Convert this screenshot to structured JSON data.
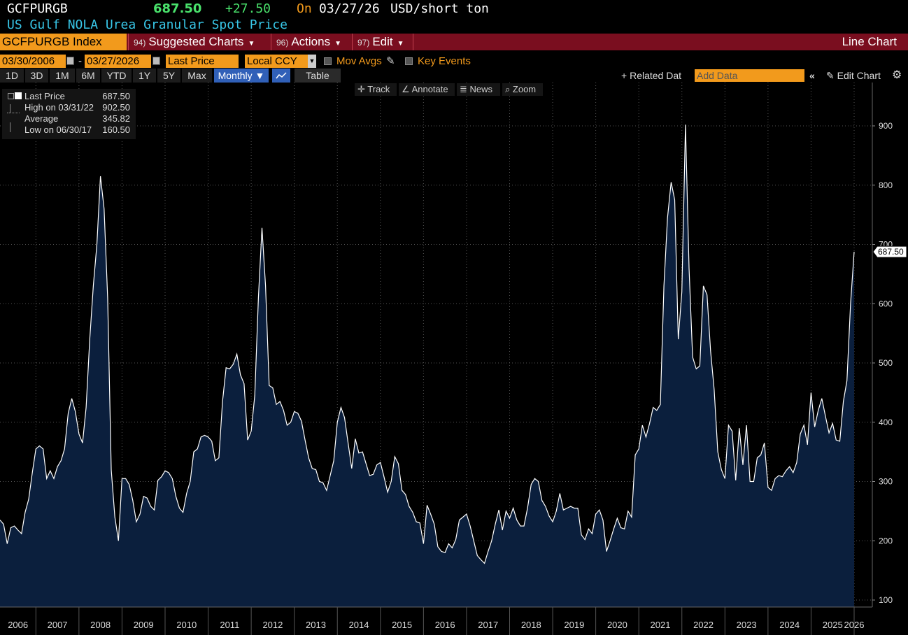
{
  "header": {
    "ticker": "GCFPURGB",
    "price": "687.50",
    "change": "+27.50",
    "on_label": "On",
    "date": "03/27/26",
    "unit": "USD/short ton",
    "description": "US Gulf NOLA Urea Granular Spot Price"
  },
  "toolbar": {
    "index_label": "GCFPURGB Index",
    "menus": [
      {
        "num": "94)",
        "label": "Suggested Charts"
      },
      {
        "num": "96)",
        "label": "Actions"
      },
      {
        "num": "97)",
        "label": "Edit"
      }
    ],
    "chart_type": "Line Chart"
  },
  "controls": {
    "start_date": "03/30/2006",
    "date_sep": "-",
    "end_date": "03/27/2026",
    "field": "Last Price",
    "currency": "Local CCY",
    "mov_avgs": "Mov Avgs",
    "key_events": "Key Events"
  },
  "periods": [
    "1D",
    "3D",
    "1M",
    "6M",
    "YTD",
    "1Y",
    "5Y",
    "Max"
  ],
  "frequency": "Monthly",
  "table_label": "Table",
  "related_data": "Related Dat",
  "add_data_placeholder": "Add Data",
  "edit_chart": "Edit Chart",
  "tools": [
    "Track",
    "Annotate",
    "News",
    "Zoom"
  ],
  "legend": {
    "items": [
      {
        "label": "Last Price",
        "value": "687.50"
      },
      {
        "label": "High on 03/31/22",
        "value": "902.50"
      },
      {
        "label": "Average",
        "value": "345.82"
      },
      {
        "label": "Low on 06/30/17",
        "value": "160.50"
      }
    ]
  },
  "colors": {
    "accent_orange": "#f29a1c",
    "bar_red": "#7a0e1f",
    "price_green": "#49e06b",
    "title_cyan": "#38c7e8",
    "area_fill": "#0b1f3d",
    "line": "#ffffff"
  },
  "chart_data": {
    "type": "area",
    "x_start": "2006-03",
    "frequency": "monthly",
    "years": [
      "2006",
      "2007",
      "2008",
      "2009",
      "2010",
      "2011",
      "2012",
      "2013",
      "2014",
      "2015",
      "2016",
      "2017",
      "2018",
      "2019",
      "2020",
      "2021",
      "2022",
      "2023",
      "2024",
      "2025",
      "2026"
    ],
    "y_ticks": [
      100,
      200,
      300,
      400,
      500,
      600,
      700,
      800,
      900
    ],
    "ylim": [
      90,
      970
    ],
    "last_value_label": "687.50",
    "values": [
      235,
      228,
      195,
      222,
      225,
      218,
      212,
      248,
      270,
      315,
      355,
      360,
      355,
      305,
      318,
      305,
      325,
      335,
      355,
      415,
      440,
      418,
      380,
      365,
      425,
      540,
      630,
      700,
      815,
      760,
      610,
      320,
      240,
      200,
      305,
      305,
      295,
      268,
      232,
      245,
      275,
      272,
      258,
      252,
      302,
      308,
      318,
      315,
      305,
      275,
      255,
      248,
      280,
      300,
      350,
      355,
      375,
      378,
      375,
      368,
      335,
      340,
      435,
      492,
      490,
      498,
      515,
      480,
      465,
      370,
      385,
      445,
      610,
      728,
      630,
      462,
      458,
      430,
      435,
      420,
      395,
      400,
      418,
      415,
      402,
      370,
      340,
      322,
      320,
      300,
      298,
      285,
      310,
      335,
      400,
      425,
      408,
      365,
      322,
      372,
      348,
      350,
      330,
      310,
      312,
      328,
      332,
      308,
      282,
      300,
      342,
      330,
      285,
      278,
      258,
      248,
      232,
      230,
      195,
      260,
      245,
      228,
      190,
      182,
      180,
      195,
      188,
      202,
      235,
      240,
      245,
      225,
      200,
      175,
      168,
      162,
      182,
      200,
      228,
      252,
      218,
      250,
      238,
      255,
      235,
      225,
      225,
      255,
      295,
      305,
      300,
      268,
      258,
      242,
      232,
      250,
      280,
      252,
      255,
      258,
      255,
      255,
      210,
      202,
      220,
      212,
      245,
      252,
      235,
      182,
      200,
      220,
      238,
      222,
      220,
      250,
      240,
      345,
      355,
      395,
      375,
      398,
      425,
      420,
      430,
      630,
      745,
      805,
      775,
      540,
      620,
      902,
      660,
      510,
      490,
      495,
      630,
      615,
      520,
      455,
      350,
      320,
      305,
      395,
      385,
      302,
      390,
      328,
      395,
      300,
      300,
      340,
      345,
      365,
      290,
      285,
      305,
      310,
      308,
      318,
      325,
      315,
      332,
      380,
      395,
      362,
      450,
      392,
      420,
      440,
      410,
      382,
      398,
      370,
      368,
      435,
      470,
      600,
      687.5
    ]
  }
}
